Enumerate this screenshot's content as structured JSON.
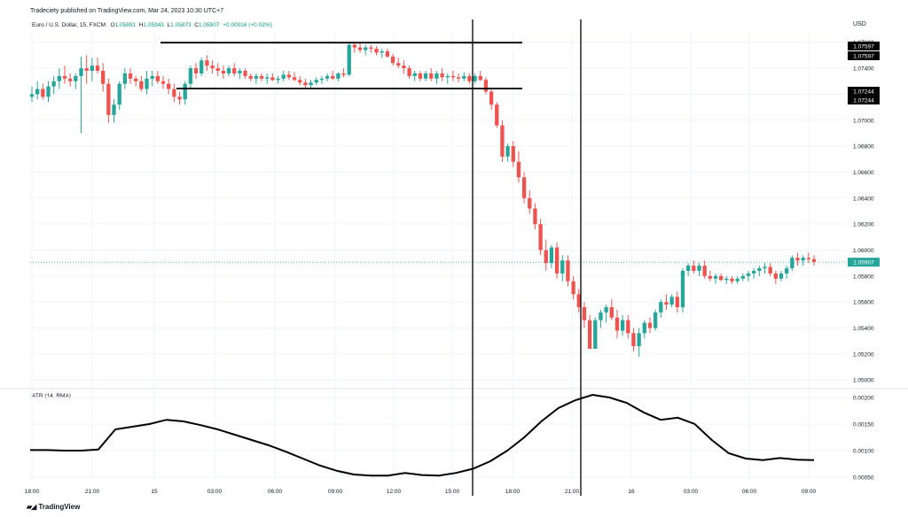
{
  "header": {
    "published": "Tradeciety published on TradingView.com, Mar 24, 2023 10:30 UTC+7",
    "symbol": "Euro / U.S. Dollar, 15, FXCM",
    "ohlc": {
      "open_label": "O",
      "open": "1.05891",
      "high_label": "H",
      "high": "1.05943",
      "low_label": "L",
      "low": "1.05873",
      "close_label": "C",
      "close": "1.05907",
      "change": "+0.00016 (+0.02%)"
    },
    "currency": "USD"
  },
  "footer": {
    "brand": "TradingView",
    "logo_icon": "tradingview-logo-icon"
  },
  "colors": {
    "up": "#26a69a",
    "down": "#ef5350",
    "line": "#000000",
    "price_line": "#26a69a",
    "grid": "#f0f3fa"
  },
  "chart_data": [
    {
      "type": "candlestick",
      "title": "Euro / U.S. Dollar, 15, FXCM",
      "ylim": [
        1.0494,
        1.0768
      ],
      "y_ticks": [
        "1.05000",
        "1.05200",
        "1.05400",
        "1.05600",
        "1.05800",
        "1.06000",
        "1.06200",
        "1.06400",
        "1.06600",
        "1.06800",
        "1.07000",
        "1.07200",
        "1.07400",
        "1.07600"
      ],
      "x_ticks": [
        "18:00",
        "21:00",
        "15",
        "03:00",
        "06:00",
        "09:00",
        "12:00",
        "15:00",
        "18:00",
        "21:00",
        "16",
        "03:00",
        "06:00",
        "09:00"
      ],
      "price_labels": [
        "1.07597",
        "1.07597",
        "1.07244",
        "1.07244",
        "1.05907"
      ],
      "current_price": 1.05907,
      "horizontal_lines": [
        1.07597,
        1.07244
      ],
      "vertical_markers": [
        "16:00",
        "21:00"
      ],
      "ohlc": [
        [
          1.0718,
          1.0726,
          1.0714,
          1.072
        ],
        [
          1.072,
          1.073,
          1.0716,
          1.0724
        ],
        [
          1.0724,
          1.0728,
          1.0716,
          1.0718
        ],
        [
          1.0718,
          1.073,
          1.0714,
          1.0726
        ],
        [
          1.0726,
          1.0734,
          1.072,
          1.073
        ],
        [
          1.073,
          1.074,
          1.0724,
          1.0734
        ],
        [
          1.0734,
          1.0742,
          1.0728,
          1.0732
        ],
        [
          1.0732,
          1.0736,
          1.0726,
          1.073
        ],
        [
          1.073,
          1.0736,
          1.0724,
          1.0734
        ],
        [
          1.0734,
          1.0749,
          1.069,
          1.074
        ],
        [
          1.074,
          1.075,
          1.0728,
          1.0738
        ],
        [
          1.0738,
          1.0748,
          1.073,
          1.0742
        ],
        [
          1.0742,
          1.0748,
          1.0736,
          1.0738
        ],
        [
          1.0738,
          1.0744,
          1.0722,
          1.0728
        ],
        [
          1.0728,
          1.0732,
          1.0698,
          1.0704
        ],
        [
          1.0704,
          1.0716,
          1.0698,
          1.0712
        ],
        [
          1.0712,
          1.073,
          1.0708,
          1.0728
        ],
        [
          1.0728,
          1.074,
          1.0724,
          1.0736
        ],
        [
          1.0736,
          1.074,
          1.0728,
          1.0732
        ],
        [
          1.0732,
          1.0734,
          1.0726,
          1.073
        ],
        [
          1.073,
          1.0734,
          1.0722,
          1.0724
        ],
        [
          1.0724,
          1.0738,
          1.072,
          1.0732
        ],
        [
          1.0732,
          1.0738,
          1.0726,
          1.0734
        ],
        [
          1.0734,
          1.0738,
          1.0728,
          1.073
        ],
        [
          1.073,
          1.0734,
          1.0724,
          1.0728
        ],
        [
          1.0728,
          1.0732,
          1.072,
          1.0724
        ],
        [
          1.0724,
          1.0728,
          1.0714,
          1.0718
        ],
        [
          1.0718,
          1.0722,
          1.0712,
          1.0716
        ],
        [
          1.0716,
          1.073,
          1.0712,
          1.0728
        ],
        [
          1.0728,
          1.0742,
          1.0724,
          1.074
        ],
        [
          1.074,
          1.0744,
          1.0732,
          1.0736
        ],
        [
          1.0736,
          1.0748,
          1.0734,
          1.0746
        ],
        [
          1.0746,
          1.075,
          1.0738,
          1.0742
        ],
        [
          1.0742,
          1.0746,
          1.0736,
          1.074
        ],
        [
          1.074,
          1.0744,
          1.0734,
          1.0738
        ],
        [
          1.0738,
          1.0742,
          1.0732,
          1.0736
        ],
        [
          1.0736,
          1.0742,
          1.0734,
          1.074
        ],
        [
          1.074,
          1.0744,
          1.0734,
          1.0736
        ],
        [
          1.0736,
          1.074,
          1.0732,
          1.0738
        ],
        [
          1.0738,
          1.074,
          1.0732,
          1.0734
        ],
        [
          1.0734,
          1.0736,
          1.073,
          1.0732
        ],
        [
          1.0732,
          1.0736,
          1.0728,
          1.0734
        ],
        [
          1.0734,
          1.0736,
          1.073,
          1.0732
        ],
        [
          1.0732,
          1.0736,
          1.0728,
          1.0733
        ],
        [
          1.0733,
          1.0736,
          1.073,
          1.0731
        ],
        [
          1.0731,
          1.0734,
          1.0728,
          1.0732
        ],
        [
          1.0732,
          1.0738,
          1.073,
          1.0735
        ],
        [
          1.0735,
          1.0738,
          1.0731,
          1.0733
        ],
        [
          1.0733,
          1.0737,
          1.073,
          1.0731
        ],
        [
          1.0731,
          1.0734,
          1.0727,
          1.0729
        ],
        [
          1.0729,
          1.0732,
          1.0725,
          1.0727
        ],
        [
          1.0727,
          1.0731,
          1.0724,
          1.0729
        ],
        [
          1.0729,
          1.0733,
          1.0727,
          1.0731
        ],
        [
          1.0731,
          1.0734,
          1.0728,
          1.0732
        ],
        [
          1.0732,
          1.0736,
          1.073,
          1.0734
        ],
        [
          1.0734,
          1.0738,
          1.0731,
          1.0732
        ],
        [
          1.0732,
          1.0737,
          1.073,
          1.0736
        ],
        [
          1.0736,
          1.074,
          1.0733,
          1.0735
        ],
        [
          1.0735,
          1.076,
          1.0734,
          1.0758
        ],
        [
          1.0758,
          1.076,
          1.0752,
          1.0756
        ],
        [
          1.0756,
          1.076,
          1.0752,
          1.0754
        ],
        [
          1.0754,
          1.0758,
          1.075,
          1.0756
        ],
        [
          1.0756,
          1.0758,
          1.0752,
          1.0755
        ],
        [
          1.0755,
          1.0757,
          1.075,
          1.0752
        ],
        [
          1.0752,
          1.0755,
          1.0748,
          1.0753
        ],
        [
          1.0753,
          1.0755,
          1.0748,
          1.0749
        ],
        [
          1.0749,
          1.0751,
          1.0742,
          1.0744
        ],
        [
          1.0744,
          1.0748,
          1.074,
          1.0742
        ],
        [
          1.0742,
          1.0746,
          1.0736,
          1.074
        ],
        [
          1.074,
          1.0742,
          1.0732,
          1.0734
        ],
        [
          1.0734,
          1.0738,
          1.073,
          1.0736
        ],
        [
          1.0736,
          1.0738,
          1.073,
          1.0732
        ],
        [
          1.0732,
          1.0738,
          1.073,
          1.0736
        ],
        [
          1.0736,
          1.074,
          1.073,
          1.0732
        ],
        [
          1.0732,
          1.0738,
          1.0728,
          1.0736
        ],
        [
          1.0736,
          1.074,
          1.073,
          1.0733
        ],
        [
          1.0733,
          1.0736,
          1.0728,
          1.0734
        ],
        [
          1.0734,
          1.0738,
          1.073,
          1.0733
        ],
        [
          1.0733,
          1.0736,
          1.0729,
          1.0732
        ],
        [
          1.0732,
          1.0737,
          1.073,
          1.0734
        ],
        [
          1.0734,
          1.0736,
          1.0728,
          1.073
        ],
        [
          1.073,
          1.0736,
          1.0728,
          1.0734
        ],
        [
          1.0734,
          1.0738,
          1.073,
          1.0731
        ],
        [
          1.0731,
          1.0733,
          1.072,
          1.0722
        ],
        [
          1.0722,
          1.0724,
          1.0708,
          1.0712
        ],
        [
          1.0712,
          1.0714,
          1.0694,
          1.0696
        ],
        [
          1.0696,
          1.07,
          1.0668,
          1.0672
        ],
        [
          1.0672,
          1.0682,
          1.0668,
          1.068
        ],
        [
          1.068,
          1.0684,
          1.0664,
          1.0668
        ],
        [
          1.0668,
          1.0676,
          1.0652,
          1.0656
        ],
        [
          1.0656,
          1.066,
          1.0636,
          1.064
        ],
        [
          1.064,
          1.0646,
          1.0628,
          1.0632
        ],
        [
          1.0632,
          1.0636,
          1.0616,
          1.062
        ],
        [
          1.062,
          1.0624,
          1.0596,
          1.06
        ],
        [
          1.06,
          1.0608,
          1.0584,
          1.059
        ],
        [
          1.059,
          1.0604,
          1.0586,
          1.0602
        ],
        [
          1.0602,
          1.0606,
          1.0578,
          1.0582
        ],
        [
          1.0582,
          1.0596,
          1.0576,
          1.0592
        ],
        [
          1.0592,
          1.0596,
          1.0572,
          1.0576
        ],
        [
          1.0576,
          1.058,
          1.0562,
          1.0566
        ],
        [
          1.0566,
          1.057,
          1.0552,
          1.0556
        ],
        [
          1.0556,
          1.056,
          1.054,
          1.0546
        ],
        [
          1.0546,
          1.055,
          1.0524,
          1.0524
        ],
        [
          1.0524,
          1.0548,
          1.0524,
          1.0546
        ],
        [
          1.0546,
          1.0554,
          1.054,
          1.0552
        ],
        [
          1.0552,
          1.0558,
          1.0544,
          1.0556
        ],
        [
          1.0556,
          1.0562,
          1.0546,
          1.0548
        ],
        [
          1.0548,
          1.0554,
          1.0532,
          1.0538
        ],
        [
          1.0538,
          1.055,
          1.0534,
          1.0546
        ],
        [
          1.0546,
          1.055,
          1.0532,
          1.0536
        ],
        [
          1.0536,
          1.054,
          1.0522,
          1.0526
        ],
        [
          1.0526,
          1.054,
          1.0518,
          1.0536
        ],
        [
          1.0536,
          1.0546,
          1.0532,
          1.0544
        ],
        [
          1.0544,
          1.0548,
          1.0536,
          1.054
        ],
        [
          1.054,
          1.0554,
          1.0538,
          1.0552
        ],
        [
          1.0552,
          1.0562,
          1.0548,
          1.056
        ],
        [
          1.056,
          1.0566,
          1.0554,
          1.0558
        ],
        [
          1.0558,
          1.0566,
          1.0556,
          1.0564
        ],
        [
          1.0564,
          1.0568,
          1.0552,
          1.0556
        ],
        [
          1.0556,
          1.0586,
          1.0552,
          1.0584
        ],
        [
          1.0584,
          1.059,
          1.058,
          1.0588
        ],
        [
          1.0588,
          1.0592,
          1.0582,
          1.0584
        ],
        [
          1.0584,
          1.059,
          1.058,
          1.0588
        ],
        [
          1.0588,
          1.0592,
          1.0578,
          1.058
        ],
        [
          1.058,
          1.0584,
          1.0576,
          1.0578
        ],
        [
          1.0578,
          1.0582,
          1.0574,
          1.058
        ],
        [
          1.058,
          1.0582,
          1.0576,
          1.0577
        ],
        [
          1.0577,
          1.058,
          1.0574,
          1.0578
        ],
        [
          1.0578,
          1.058,
          1.0574,
          1.0576
        ],
        [
          1.0576,
          1.058,
          1.0574,
          1.0578
        ],
        [
          1.0578,
          1.0582,
          1.0576,
          1.058
        ],
        [
          1.058,
          1.0584,
          1.0576,
          1.0582
        ],
        [
          1.0582,
          1.0586,
          1.0578,
          1.0584
        ],
        [
          1.0584,
          1.0588,
          1.058,
          1.0586
        ],
        [
          1.0586,
          1.059,
          1.0582,
          1.0587
        ],
        [
          1.0587,
          1.059,
          1.058,
          1.0582
        ],
        [
          1.0582,
          1.0584,
          1.0574,
          1.0578
        ],
        [
          1.0578,
          1.0584,
          1.0576,
          1.0582
        ],
        [
          1.0582,
          1.0588,
          1.0578,
          1.0586
        ],
        [
          1.0586,
          1.0596,
          1.0584,
          1.0594
        ],
        [
          1.0594,
          1.0598,
          1.0588,
          1.0592
        ],
        [
          1.0592,
          1.0596,
          1.0588,
          1.0594
        ],
        [
          1.0594,
          1.0598,
          1.059,
          1.0593
        ],
        [
          1.0593,
          1.0596,
          1.0588,
          1.0591
        ]
      ]
    },
    {
      "type": "line",
      "title": "ATR (14, RMA)",
      "ylim": [
        0.0004,
        0.00215
      ],
      "y_ticks": [
        "0.00050",
        "0.00100",
        "0.00150",
        "0.00200"
      ],
      "values": [
        0.00101,
        0.00101,
        0.001,
        0.001,
        0.00102,
        0.0014,
        0.00145,
        0.0015,
        0.00158,
        0.00155,
        0.00148,
        0.0014,
        0.0013,
        0.0012,
        0.0011,
        0.00098,
        0.00085,
        0.00072,
        0.00062,
        0.00055,
        0.00053,
        0.00053,
        0.00058,
        0.00054,
        0.00053,
        0.00058,
        0.00066,
        0.0008,
        0.001,
        0.00125,
        0.00155,
        0.0018,
        0.00195,
        0.00205,
        0.002,
        0.0019,
        0.00172,
        0.00158,
        0.00162,
        0.0015,
        0.0012,
        0.00095,
        0.00085,
        0.00082,
        0.00086,
        0.00083,
        0.00082
      ]
    }
  ]
}
